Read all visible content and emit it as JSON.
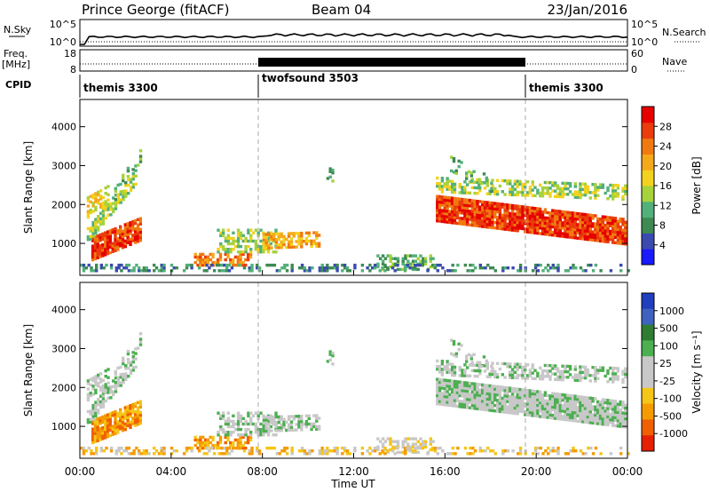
{
  "header": {
    "station": "Prince George (fitACF)",
    "beam": "Beam 04",
    "date": "23/Jan/2016"
  },
  "panels": {
    "nsky_label": "N.Sky",
    "nsearch_label": "N.Search",
    "nsky_ticks": [
      "10^5",
      "10^0"
    ],
    "freq_label": "Freq.",
    "freq_unit": "[MHz]",
    "freq_ticks": [
      "18",
      "8"
    ],
    "nave_label": "Nave",
    "nave_ticks": [
      "60",
      "0"
    ],
    "cpid_label": "CPID",
    "cpid_segments": [
      {
        "name": "themis 3300",
        "start_h": 0,
        "end_h": 8
      },
      {
        "name": "twofsound 3503",
        "start_h": 8,
        "end_h": 20
      },
      {
        "name": "themis 3300",
        "start_h": 20,
        "end_h": 24
      }
    ]
  },
  "colors": {
    "power_scale": [
      "#1a1aff",
      "#3a4ab0",
      "#3e8a52",
      "#52b07a",
      "#a6d23c",
      "#f2d21e",
      "#f5a81a",
      "#f07a10",
      "#ea3c0c",
      "#e60000"
    ],
    "velocity_scale": [
      "#1f3fbf",
      "#3f62c0",
      "#2e7d32",
      "#4caf50",
      "#c8c8c8",
      "#c8c8c8",
      "#f5c518",
      "#f59b00",
      "#f06000",
      "#e62000"
    ]
  },
  "chart_data": [
    {
      "type": "heatmap",
      "name": "power",
      "ylabel": "Slant Range [km]",
      "ylim": [
        180,
        4700
      ],
      "xlim": [
        0,
        24
      ],
      "ytick_labels": [
        "1000",
        "2000",
        "3000",
        "4000"
      ],
      "ytick_values": [
        1000,
        2000,
        3000,
        4000
      ],
      "colorbar_label": "Power [dB]",
      "colorbar_ticks": [
        "4",
        "8",
        "12",
        "16",
        "20",
        "24",
        "28"
      ],
      "colorbar_range": [
        0,
        32
      ]
    },
    {
      "type": "heatmap",
      "name": "velocity",
      "ylabel": "Slant Range [km]",
      "ylim": [
        180,
        4700
      ],
      "xlim": [
        0,
        24
      ],
      "ytick_labels": [
        "1000",
        "2000",
        "3000",
        "4000"
      ],
      "ytick_values": [
        1000,
        2000,
        3000,
        4000
      ],
      "xlabel": "Time UT",
      "xtick_labels": [
        "00:00",
        "04:00",
        "08:00",
        "12:00",
        "16:00",
        "20:00",
        "00:00"
      ],
      "xtick_values": [
        0,
        4,
        8,
        12,
        16,
        20,
        24
      ],
      "colorbar_label": "Velocity [m s⁻¹]",
      "colorbar_ticks": [
        "1000",
        "500",
        "100",
        "25",
        "-25",
        "-100",
        "-500",
        "-1000"
      ]
    }
  ]
}
